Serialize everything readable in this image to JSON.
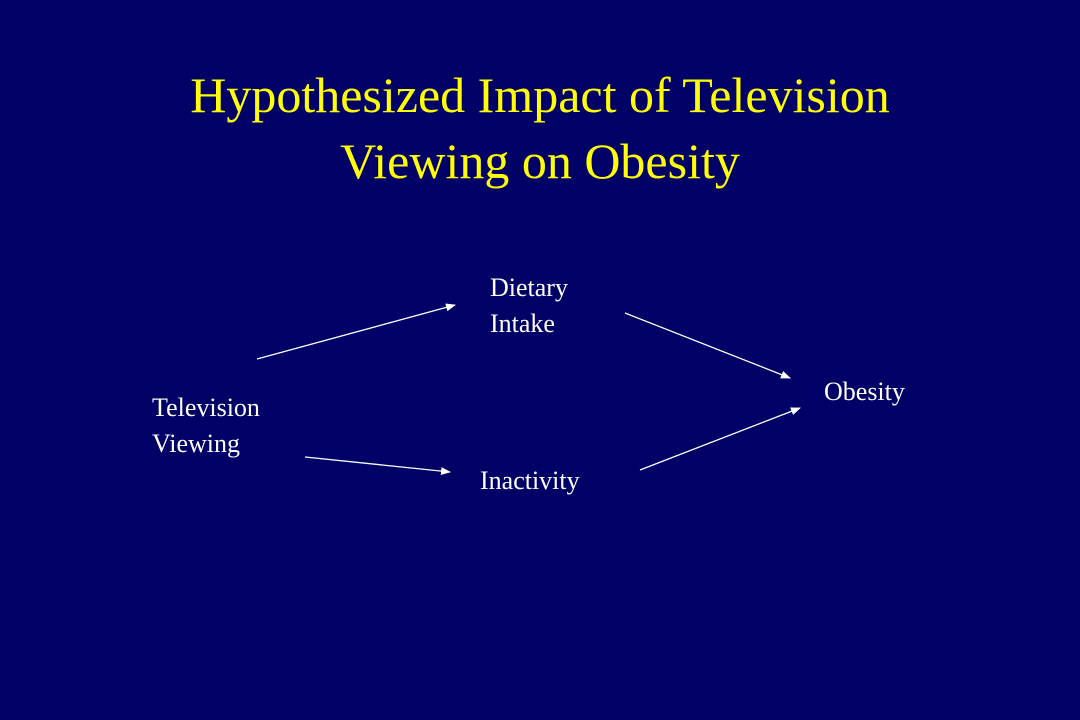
{
  "title": {
    "lines": [
      "Hypothesized Impact of Television",
      "Viewing on Obesity"
    ]
  },
  "nodes": [
    {
      "lines": [
        "Television",
        "Viewing"
      ]
    },
    {
      "lines": [
        "Dietary",
        "Intake"
      ]
    },
    {
      "lines": [
        "Inactivity"
      ]
    },
    {
      "lines": [
        "Obesity"
      ]
    }
  ]
}
